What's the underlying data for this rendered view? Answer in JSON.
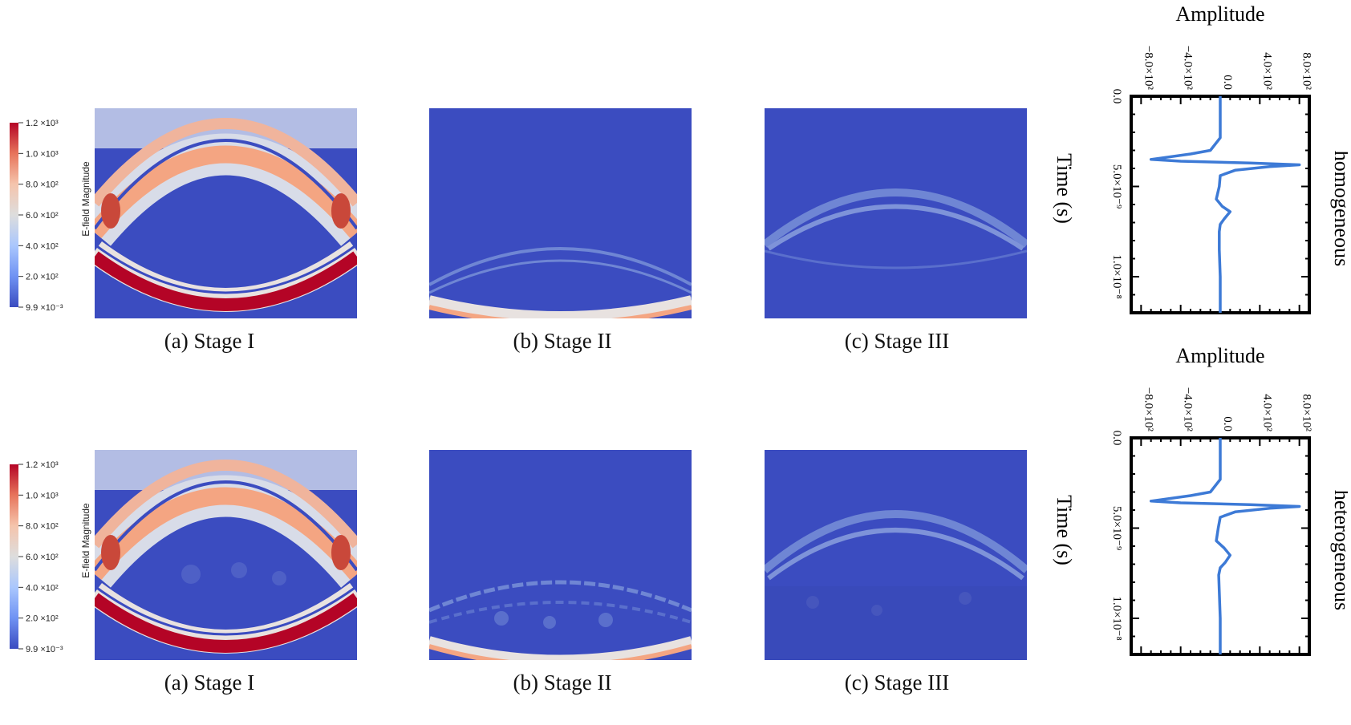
{
  "colorbar": {
    "title": "E-field Magnitude",
    "ticks": [
      "1.2 ×10³",
      "1.0 ×10³",
      "8.0 ×10²",
      "6.0 ×10²",
      "4.0 ×10²",
      "2.0 ×10²",
      "9.9 ×10⁻³"
    ],
    "colors": [
      "#b40426",
      "#e7745b",
      "#f5c4ac",
      "#dddddd",
      "#aac7fd",
      "#6f92f3",
      "#3b4cc0"
    ]
  },
  "field_colors": {
    "background": "#3b4cc0",
    "warm": "#f4a582",
    "hot": "#b40426",
    "pale": "#dcdde6"
  },
  "rows": [
    {
      "key": "homogeneous",
      "captions": [
        "(a) Stage I",
        "(b) Stage II",
        "(c) Stage III"
      ],
      "trace_label": "homogeneous",
      "amplitude_label": "Amplitude",
      "time_label": "Time (s)"
    },
    {
      "key": "heterogeneous",
      "captions": [
        "(a) Stage I",
        "(b) Stage II",
        "(c) Stage III"
      ],
      "trace_label": "heterogeneous",
      "amplitude_label": "Amplitude",
      "time_label": "Time (s)"
    }
  ],
  "chart_data": [
    {
      "type": "line",
      "title": "",
      "xlabel": "Amplitude",
      "ylabel": "Time (s)",
      "side_label": "homogeneous",
      "x_ticks": [
        "−8.0×10²",
        "−4.0×10²",
        "0.0",
        "4.0×10²",
        "8.0×10²"
      ],
      "y_ticks": [
        "0.0",
        "5.0×10⁻⁹",
        "1.0×10⁻⁸"
      ],
      "xlim": [
        -900,
        900
      ],
      "ylim": [
        0,
        1.2e-08
      ],
      "series": [
        {
          "color": "#3d7ad6",
          "x": [
            0,
            0,
            0,
            -100,
            -300,
            -700,
            -400,
            300,
            800,
            500,
            150,
            0,
            -10,
            -40,
            20,
            100,
            40,
            0,
            -10,
            -10,
            0,
            0
          ],
          "y": [
            0,
            2e-09,
            2.3e-09,
            3e-09,
            3.2e-09,
            3.5e-09,
            3.6e-09,
            3.7e-09,
            3.8e-09,
            3.9e-09,
            4.1e-09,
            4.4e-09,
            5e-09,
            5.7e-09,
            6.1e-09,
            6.4e-09,
            6.8e-09,
            7.1e-09,
            7.5e-09,
            8.5e-09,
            1e-08,
            1.2e-08
          ]
        }
      ]
    },
    {
      "type": "line",
      "title": "",
      "xlabel": "Amplitude",
      "ylabel": "Time (s)",
      "side_label": "heterogeneous",
      "x_ticks": [
        "−8.0×10²",
        "−4.0×10²",
        "0.0",
        "4.0×10²",
        "8.0×10²"
      ],
      "y_ticks": [
        "0.0",
        "5.0×10⁻⁹",
        "1.0×10⁻⁸"
      ],
      "xlim": [
        -900,
        900
      ],
      "ylim": [
        0,
        1.2e-08
      ],
      "series": [
        {
          "color": "#3d7ad6",
          "x": [
            0,
            0,
            0,
            -100,
            -300,
            -700,
            -400,
            300,
            800,
            500,
            150,
            0,
            -20,
            -40,
            40,
            100,
            50,
            0,
            -15,
            -10,
            0,
            0
          ],
          "y": [
            0,
            2e-09,
            2.3e-09,
            3e-09,
            3.2e-09,
            3.5e-09,
            3.6e-09,
            3.7e-09,
            3.8e-09,
            3.9e-09,
            4.1e-09,
            4.4e-09,
            5e-09,
            5.7e-09,
            6.1e-09,
            6.5e-09,
            6.9e-09,
            7.2e-09,
            7.6e-09,
            8.5e-09,
            1e-08,
            1.2e-08
          ]
        }
      ]
    }
  ]
}
